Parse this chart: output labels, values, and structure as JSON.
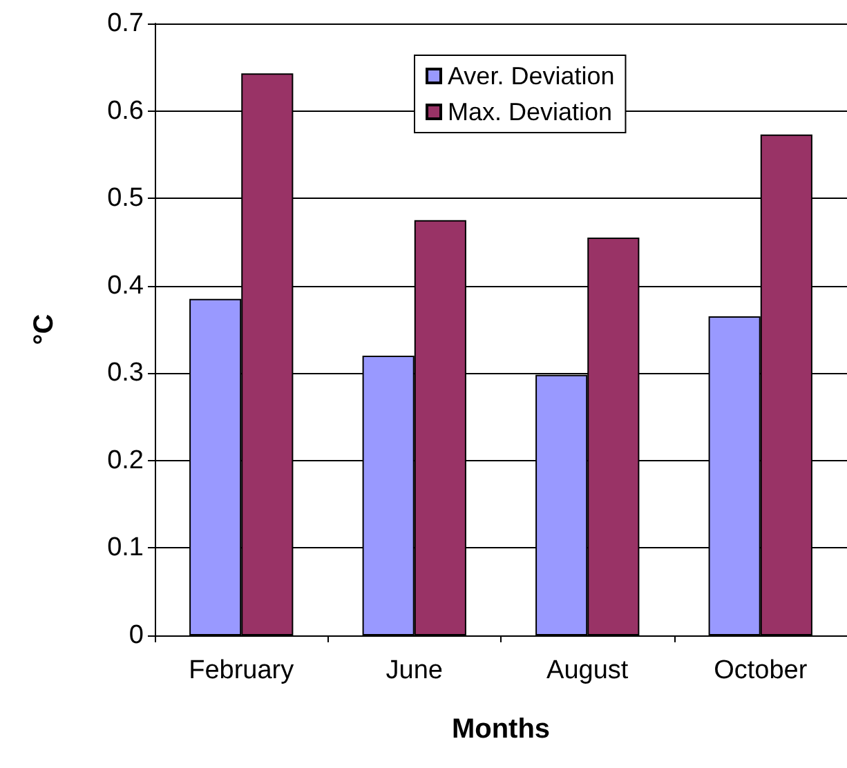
{
  "chart_data": {
    "type": "bar",
    "xlabel": "Months",
    "ylabel": "°C",
    "categories": [
      "February",
      "June",
      "August",
      "October"
    ],
    "series": [
      {
        "name": "Aver. Deviation",
        "color": "#9999ff",
        "values": [
          0.385,
          0.32,
          0.298,
          0.365
        ]
      },
      {
        "name": "Max. Deviation",
        "color": "#993366",
        "values": [
          0.643,
          0.475,
          0.455,
          0.573
        ]
      }
    ],
    "ylim": [
      0,
      0.7
    ],
    "yticks": [
      0,
      0.1,
      0.2,
      0.3,
      0.4,
      0.5,
      0.6,
      0.7
    ],
    "grid": "y",
    "legend": "top"
  }
}
